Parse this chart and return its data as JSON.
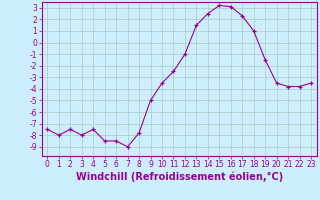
{
  "x": [
    0,
    1,
    2,
    3,
    4,
    5,
    6,
    7,
    8,
    9,
    10,
    11,
    12,
    13,
    14,
    15,
    16,
    17,
    18,
    19,
    20,
    21,
    22,
    23
  ],
  "y": [
    -7.5,
    -8.0,
    -7.5,
    -8.0,
    -7.5,
    -8.5,
    -8.5,
    -9.0,
    -7.8,
    -5.0,
    -3.5,
    -2.5,
    -1.0,
    1.5,
    2.5,
    3.2,
    3.1,
    2.3,
    1.0,
    -1.5,
    -3.5,
    -3.8,
    -3.8,
    -3.5
  ],
  "line_color": "#990099",
  "marker": "+",
  "bg_color": "#cceeff",
  "grid_color": "#aaccbb",
  "xlabel": "Windchill (Refroidissement éolien,°C)",
  "xlabel_color": "#990099",
  "tick_color": "#990099",
  "axis_color": "#990099",
  "ylim": [
    -9.8,
    3.5
  ],
  "xlim": [
    -0.5,
    23.5
  ],
  "yticks": [
    3,
    2,
    1,
    0,
    -1,
    -2,
    -3,
    -4,
    -5,
    -6,
    -7,
    -8,
    -9
  ],
  "xticks": [
    0,
    1,
    2,
    3,
    4,
    5,
    6,
    7,
    8,
    9,
    10,
    11,
    12,
    13,
    14,
    15,
    16,
    17,
    18,
    19,
    20,
    21,
    22,
    23
  ],
  "xtick_labels": [
    "0",
    "1",
    "2",
    "3",
    "4",
    "5",
    "6",
    "7",
    "8",
    "9",
    "10",
    "11",
    "12",
    "13",
    "14",
    "15",
    "16",
    "17",
    "18",
    "19",
    "20",
    "21",
    "22",
    "23"
  ],
  "font_size": 5.5,
  "xlabel_size": 7
}
